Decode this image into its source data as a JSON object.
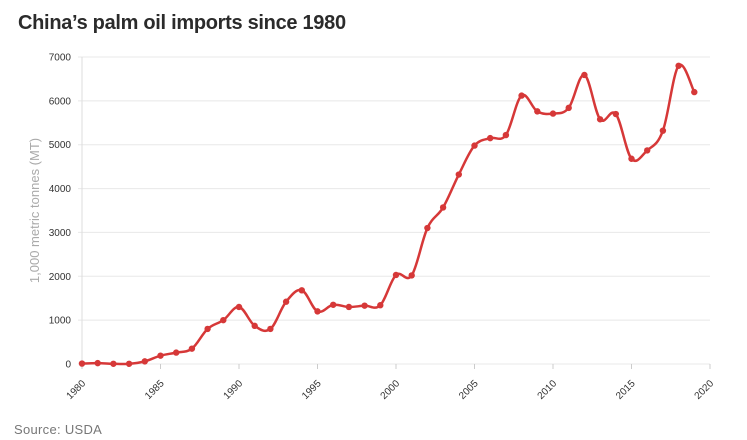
{
  "chart_data": {
    "type": "line",
    "title": "China’s palm oil imports since 1980",
    "xlabel": "",
    "ylabel": "1,000 metric tonnes (MT)",
    "xlim": [
      1980,
      2020
    ],
    "ylim": [
      0,
      7000
    ],
    "xticks": [
      1980,
      1985,
      1990,
      1995,
      2000,
      2005,
      2010,
      2015,
      2020
    ],
    "yticks": [
      0,
      1000,
      2000,
      3000,
      4000,
      5000,
      6000,
      7000
    ],
    "grid": true,
    "color": "#d63838",
    "x": [
      1980,
      1981,
      1982,
      1983,
      1984,
      1985,
      1986,
      1987,
      1988,
      1989,
      1990,
      1991,
      1992,
      1993,
      1994,
      1995,
      1996,
      1997,
      1998,
      1999,
      2000,
      2001,
      2002,
      2003,
      2004,
      2005,
      2006,
      2007,
      2008,
      2009,
      2010,
      2011,
      2012,
      2013,
      2014,
      2015,
      2016,
      2017,
      2018,
      2019
    ],
    "values": [
      10,
      20,
      5,
      5,
      60,
      190,
      260,
      350,
      800,
      1000,
      1300,
      870,
      800,
      1420,
      1680,
      1200,
      1350,
      1300,
      1330,
      1340,
      2030,
      2020,
      3100,
      3570,
      4320,
      4980,
      5150,
      5220,
      6120,
      5760,
      5710,
      5840,
      6590,
      5580,
      5700,
      4680,
      4870,
      5320,
      6800,
      6200
    ],
    "source": "Source: USDA"
  }
}
